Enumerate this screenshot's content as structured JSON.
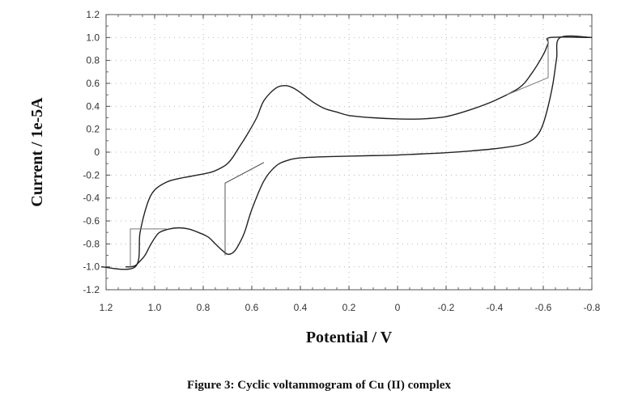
{
  "figure": {
    "caption": "Figure 3: Cyclic voltammogram of Cu (II) complex"
  },
  "chart_data": {
    "type": "line",
    "title": "",
    "xlabel": "Potential / V",
    "ylabel": "Current / 1e-5A",
    "xlim": [
      1.2,
      -0.8
    ],
    "ylim": [
      -1.2,
      1.2
    ],
    "x_reversed": true,
    "grid": true,
    "x_ticks": [
      1.2,
      1.0,
      0.8,
      0.6,
      0.4,
      0.2,
      0,
      -0.2,
      -0.4,
      -0.6,
      -0.8
    ],
    "x_tick_labels": [
      "1.2",
      "1.0",
      "0.8",
      "0.6",
      "0.4",
      "0.2",
      "0",
      "-0.2",
      "-0.4",
      "-0.6",
      "-0.8"
    ],
    "y_ticks": [
      1.2,
      1.0,
      0.8,
      0.6,
      0.4,
      0.2,
      0,
      -0.2,
      -0.4,
      -0.6,
      -0.8,
      -1.0,
      -1.2
    ],
    "y_tick_labels": [
      "1.2",
      "1.0",
      "0.8",
      "0.6",
      "0.4",
      "0.2",
      "0",
      "-0.2",
      "-0.4",
      "-0.6",
      "-0.8",
      "-1.0",
      "-1.2"
    ],
    "series": [
      {
        "color": "#222222",
        "x": [
          1.22,
          1.08,
          1.06,
          1.03,
          1.0,
          0.95,
          0.9,
          0.85,
          0.8,
          0.76,
          0.72,
          0.7,
          0.68,
          0.65,
          0.62,
          0.58,
          0.55,
          0.5,
          0.46,
          0.43,
          0.4,
          0.35,
          0.3,
          0.25,
          0.2,
          0.1,
          0.0,
          -0.1,
          -0.2,
          -0.3,
          -0.4,
          -0.5,
          -0.55,
          -0.6,
          -0.62,
          -0.63,
          -0.8
        ],
        "y": [
          -1.0,
          -1.0,
          -0.7,
          -0.45,
          -0.33,
          -0.26,
          -0.23,
          -0.21,
          -0.19,
          -0.17,
          -0.13,
          -0.1,
          -0.05,
          0.05,
          0.15,
          0.3,
          0.45,
          0.56,
          0.58,
          0.56,
          0.52,
          0.44,
          0.38,
          0.35,
          0.32,
          0.3,
          0.29,
          0.29,
          0.31,
          0.37,
          0.45,
          0.56,
          0.68,
          0.85,
          0.95,
          1.0,
          1.0
        ]
      },
      {
        "color": "#222222",
        "x": [
          -0.8,
          -0.67,
          -0.655,
          -0.64,
          -0.62,
          -0.6,
          -0.58,
          -0.55,
          -0.5,
          -0.4,
          -0.3,
          -0.2,
          -0.1,
          0.0,
          0.1,
          0.2,
          0.3,
          0.4,
          0.45,
          0.5,
          0.55,
          0.6,
          0.63,
          0.66,
          0.68,
          0.7,
          0.72,
          0.75,
          0.78,
          0.82,
          0.86,
          0.9,
          0.94,
          0.98,
          1.0,
          1.02,
          1.04,
          1.06,
          1.08,
          1.1,
          1.12
        ],
        "y": [
          1.0,
          1.0,
          0.82,
          0.6,
          0.4,
          0.25,
          0.16,
          0.1,
          0.06,
          0.03,
          0.01,
          -0.005,
          -0.015,
          -0.025,
          -0.03,
          -0.035,
          -0.04,
          -0.05,
          -0.07,
          -0.12,
          -0.25,
          -0.5,
          -0.7,
          -0.83,
          -0.88,
          -0.89,
          -0.86,
          -0.8,
          -0.74,
          -0.7,
          -0.67,
          -0.66,
          -0.67,
          -0.7,
          -0.75,
          -0.82,
          -0.9,
          -0.95,
          -0.99,
          -1.0,
          -1.0
        ]
      },
      {
        "color": "#777777",
        "x": [
          1.1,
          1.1,
          0.95
        ],
        "y": [
          -1.0,
          -0.67,
          -0.67
        ]
      },
      {
        "color": "#555555",
        "x": [
          0.71,
          0.71,
          0.55
        ],
        "y": [
          -0.9,
          -0.27,
          -0.09
        ]
      },
      {
        "color": "#777777",
        "x": [
          -0.62,
          -0.62,
          -0.45
        ],
        "y": [
          1.0,
          0.65,
          0.5
        ]
      }
    ]
  }
}
